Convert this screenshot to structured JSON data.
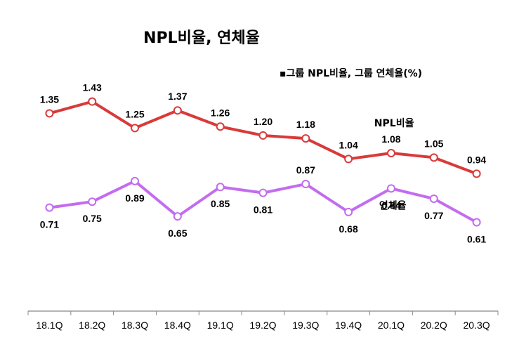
{
  "chart_data": {
    "type": "line",
    "title": "NPL비율, 연체율",
    "legend": "▪그룹 NPL비율, 그룹 연체율(%)",
    "legend_position": "top-right",
    "categories": [
      "18.1Q",
      "18.2Q",
      "18.3Q",
      "18.4Q",
      "19.1Q",
      "19.2Q",
      "19.3Q",
      "19.4Q",
      "20.1Q",
      "20.2Q",
      "20.3Q"
    ],
    "series": [
      {
        "name": "NPL비율",
        "color": "#d93a3a",
        "values": [
          1.35,
          1.43,
          1.25,
          1.37,
          1.26,
          1.2,
          1.18,
          1.04,
          1.08,
          1.05,
          0.94
        ],
        "labels": [
          "1.35",
          "1.43",
          "1.25",
          "1.37",
          "1.26",
          "1.20",
          "1.18",
          "1.04",
          "1.08",
          "1.05",
          "0.94"
        ]
      },
      {
        "name": "연체율",
        "color": "#c36cf0",
        "values": [
          0.71,
          0.75,
          0.89,
          0.65,
          0.85,
          0.81,
          0.87,
          0.68,
          0.84,
          0.77,
          0.61
        ],
        "labels": [
          "0.71",
          "0.75",
          "0.89",
          "0.65",
          "0.85",
          "0.81",
          "0.87",
          "0.68",
          "0.84",
          "0.77",
          "0.61"
        ]
      }
    ],
    "grid": false
  }
}
